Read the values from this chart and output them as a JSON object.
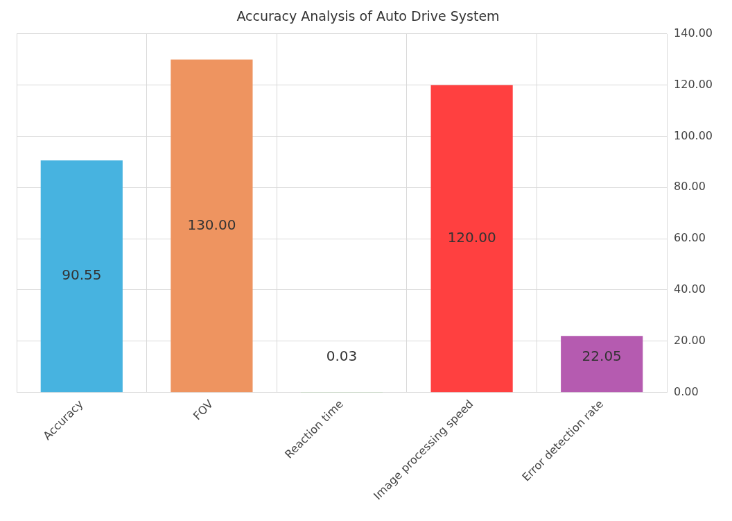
{
  "chart_data": {
    "type": "bar",
    "title": "Accuracy Analysis of Auto Drive System",
    "categories": [
      "Accuracy",
      "FOV",
      "Reaction time",
      "Image processing speed",
      "Error detection rate"
    ],
    "values": [
      90.55,
      130.0,
      0.03,
      120.0,
      22.05
    ],
    "colors": [
      "#47b3e0",
      "#ee9460",
      "#7cc46a",
      "#ff4040",
      "#b55bb0"
    ],
    "ylim": [
      0,
      140
    ],
    "yticks": [
      {
        "value": 0,
        "label": "0.00"
      },
      {
        "value": 20,
        "label": "20.00"
      },
      {
        "value": 40,
        "label": "40.00"
      },
      {
        "value": 60,
        "label": "60.00"
      },
      {
        "value": 80,
        "label": "80.00"
      },
      {
        "value": 100,
        "label": "100.00"
      },
      {
        "value": 120,
        "label": "120.00"
      },
      {
        "value": 140,
        "label": "140.00"
      }
    ],
    "value_labels": [
      "90.55",
      "130.00",
      "0.03",
      "120.00",
      "22.05"
    ],
    "grid": true
  }
}
